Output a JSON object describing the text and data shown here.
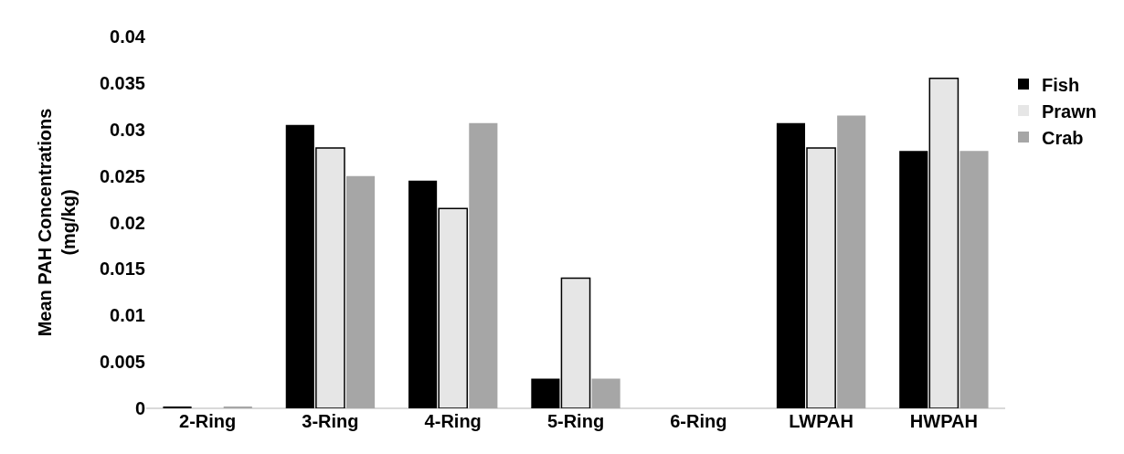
{
  "chart_data": {
    "type": "bar",
    "ylabel": "Mean PAH Concentrations\n(mg/kg)",
    "categories": [
      "2-Ring",
      "3-Ring",
      "4-Ring",
      "5-Ring",
      "6-Ring",
      "LWPAH",
      "HWPAH"
    ],
    "series": [
      {
        "name": "Fish",
        "color": "#000000",
        "values": [
          0.0002,
          0.0305,
          0.0245,
          0.0032,
          0,
          0.0307,
          0.0277
        ]
      },
      {
        "name": "Prawn",
        "color": "#e6e6e6",
        "values": [
          0,
          0.028,
          0.0215,
          0.014,
          0,
          0.028,
          0.0355
        ]
      },
      {
        "name": "Crab",
        "color": "#a6a6a6",
        "values": [
          0.0002,
          0.025,
          0.0307,
          0.0032,
          0,
          0.0315,
          0.0277
        ]
      }
    ],
    "ylim": [
      0,
      0.04
    ],
    "yticks": [
      0,
      0.005,
      0.01,
      0.015,
      0.02,
      0.025,
      0.03,
      0.035,
      0.04
    ],
    "grid": false,
    "legend": "top right"
  }
}
